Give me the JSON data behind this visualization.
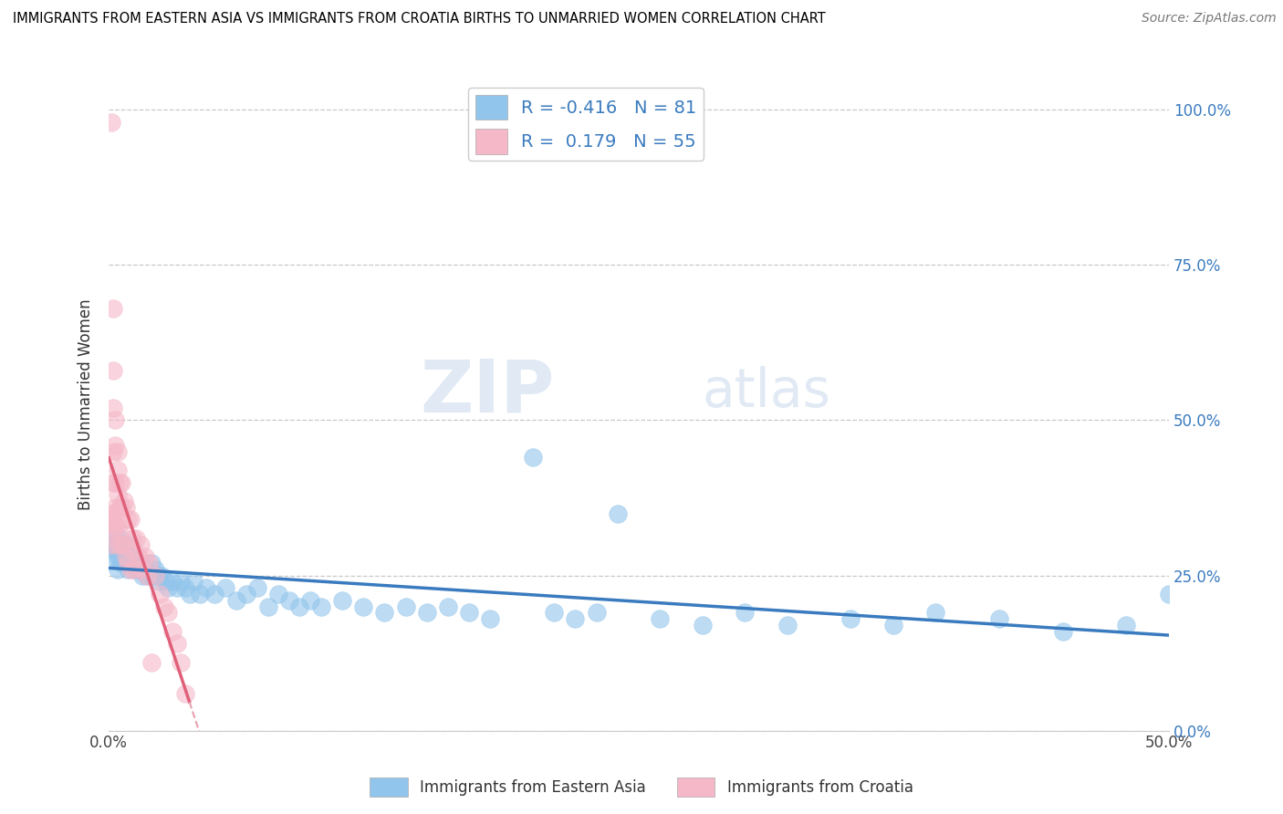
{
  "title": "IMMIGRANTS FROM EASTERN ASIA VS IMMIGRANTS FROM CROATIA BIRTHS TO UNMARRIED WOMEN CORRELATION CHART",
  "source": "Source: ZipAtlas.com",
  "ylabel": "Births to Unmarried Women",
  "yticks": [
    "0.0%",
    "25.0%",
    "50.0%",
    "75.0%",
    "100.0%"
  ],
  "ytick_vals": [
    0.0,
    0.25,
    0.5,
    0.75,
    1.0
  ],
  "xlim": [
    0.0,
    0.5
  ],
  "ylim": [
    0.0,
    1.05
  ],
  "legend1_label": "Immigrants from Eastern Asia",
  "legend2_label": "Immigrants from Croatia",
  "R1": -0.416,
  "N1": 81,
  "R2": 0.179,
  "N2": 55,
  "blue_color": "#92C5EC",
  "pink_color": "#F5B8C8",
  "blue_line_color": "#3A7BBF",
  "pink_line_color": "#E0607A",
  "pink_line_dash_color": "#E8A0B0",
  "watermark_zip": "ZIP",
  "watermark_atlas": "atlas",
  "blue_scatter_x": [
    0.001,
    0.002,
    0.002,
    0.003,
    0.003,
    0.004,
    0.004,
    0.004,
    0.005,
    0.005,
    0.005,
    0.006,
    0.006,
    0.007,
    0.007,
    0.008,
    0.008,
    0.009,
    0.009,
    0.01,
    0.01,
    0.011,
    0.012,
    0.012,
    0.013,
    0.014,
    0.015,
    0.016,
    0.017,
    0.018,
    0.02,
    0.021,
    0.022,
    0.023,
    0.024,
    0.025,
    0.027,
    0.028,
    0.03,
    0.032,
    0.034,
    0.036,
    0.038,
    0.04,
    0.043,
    0.046,
    0.05,
    0.055,
    0.06,
    0.065,
    0.07,
    0.075,
    0.08,
    0.085,
    0.09,
    0.095,
    0.1,
    0.11,
    0.12,
    0.13,
    0.14,
    0.15,
    0.16,
    0.17,
    0.18,
    0.2,
    0.21,
    0.22,
    0.23,
    0.24,
    0.26,
    0.28,
    0.3,
    0.32,
    0.35,
    0.37,
    0.39,
    0.42,
    0.45,
    0.48,
    0.5
  ],
  "blue_scatter_y": [
    0.3,
    0.32,
    0.28,
    0.31,
    0.29,
    0.3,
    0.28,
    0.26,
    0.3,
    0.28,
    0.31,
    0.29,
    0.27,
    0.3,
    0.28,
    0.29,
    0.27,
    0.28,
    0.26,
    0.28,
    0.3,
    0.27,
    0.28,
    0.26,
    0.27,
    0.26,
    0.27,
    0.25,
    0.26,
    0.25,
    0.27,
    0.25,
    0.26,
    0.25,
    0.24,
    0.25,
    0.24,
    0.23,
    0.24,
    0.23,
    0.24,
    0.23,
    0.22,
    0.24,
    0.22,
    0.23,
    0.22,
    0.23,
    0.21,
    0.22,
    0.23,
    0.2,
    0.22,
    0.21,
    0.2,
    0.21,
    0.2,
    0.21,
    0.2,
    0.19,
    0.2,
    0.19,
    0.2,
    0.19,
    0.18,
    0.44,
    0.19,
    0.18,
    0.19,
    0.35,
    0.18,
    0.17,
    0.19,
    0.17,
    0.18,
    0.17,
    0.19,
    0.18,
    0.16,
    0.17,
    0.22
  ],
  "pink_scatter_x": [
    0.001,
    0.001,
    0.001,
    0.001,
    0.001,
    0.002,
    0.002,
    0.002,
    0.002,
    0.002,
    0.002,
    0.002,
    0.003,
    0.003,
    0.003,
    0.003,
    0.003,
    0.004,
    0.004,
    0.004,
    0.004,
    0.004,
    0.005,
    0.005,
    0.005,
    0.006,
    0.006,
    0.006,
    0.007,
    0.007,
    0.008,
    0.008,
    0.009,
    0.009,
    0.01,
    0.01,
    0.011,
    0.012,
    0.012,
    0.013,
    0.014,
    0.015,
    0.016,
    0.017,
    0.018,
    0.019,
    0.02,
    0.022,
    0.024,
    0.026,
    0.028,
    0.03,
    0.032,
    0.034,
    0.036
  ],
  "pink_scatter_y": [
    0.98,
    0.35,
    0.34,
    0.33,
    0.3,
    0.68,
    0.58,
    0.52,
    0.45,
    0.4,
    0.35,
    0.32,
    0.5,
    0.46,
    0.4,
    0.36,
    0.33,
    0.45,
    0.42,
    0.38,
    0.33,
    0.3,
    0.4,
    0.36,
    0.32,
    0.4,
    0.36,
    0.3,
    0.37,
    0.3,
    0.36,
    0.28,
    0.34,
    0.27,
    0.34,
    0.26,
    0.31,
    0.29,
    0.26,
    0.31,
    0.28,
    0.3,
    0.26,
    0.28,
    0.25,
    0.27,
    0.11,
    0.25,
    0.22,
    0.2,
    0.19,
    0.16,
    0.14,
    0.11,
    0.06
  ]
}
